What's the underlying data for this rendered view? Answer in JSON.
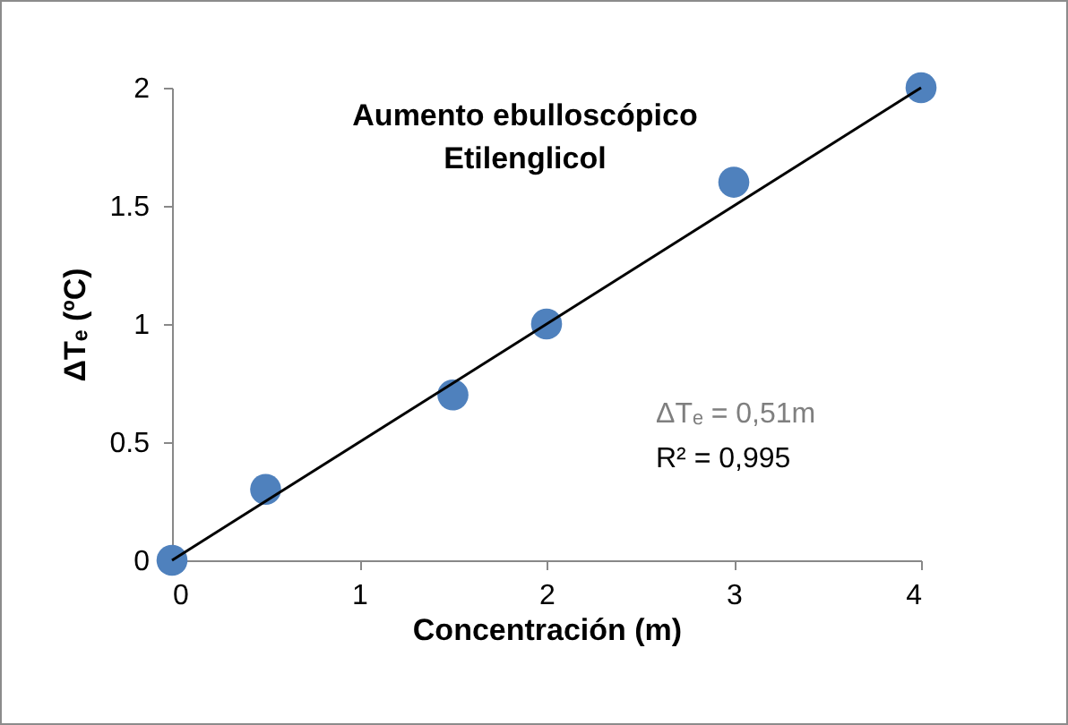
{
  "chart_data": {
    "type": "scatter",
    "title": "Aumento ebulloscópico\nEtilenglicol",
    "xlabel": "Concentración (m)",
    "ylabel": "ΔTₑ (ºC)",
    "series": [
      {
        "marker": "circle",
        "color": "#4f81bd",
        "x": [
          0,
          0.5,
          1.5,
          2,
          3,
          4
        ],
        "values": [
          0,
          0.3,
          0.7,
          1,
          1.6,
          2
        ]
      },
      {
        "type": "line",
        "color": "#000000",
        "x": [
          0,
          4
        ],
        "values": [
          0,
          2
        ]
      }
    ],
    "annotations": [
      "ΔTₑ = 0,51m",
      "R² = 0,995"
    ],
    "xlim": [
      0,
      4
    ],
    "xticks": [
      0,
      1,
      2,
      3,
      4
    ],
    "ylim": [
      0,
      2
    ],
    "yticks": [
      0,
      0.5,
      1,
      1.5,
      2
    ],
    "grid": false
  }
}
